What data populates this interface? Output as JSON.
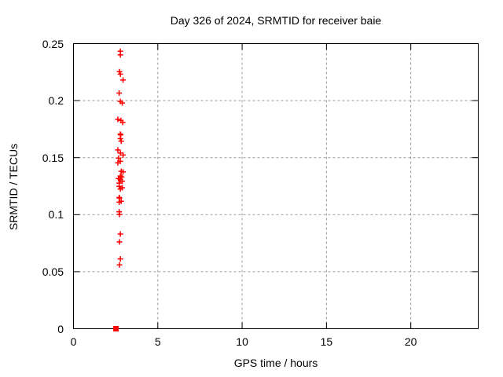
{
  "chart_data": {
    "type": "scatter",
    "title": "Day 326 of 2024, SRMTID for receiver baie",
    "xlabel": "GPS time / hours",
    "ylabel": "SRMTID / TECUs",
    "xlim": [
      0,
      24
    ],
    "ylim": [
      0,
      0.25
    ],
    "x_tick_values": [
      0,
      5,
      10,
      15,
      20
    ],
    "x_tick_labels": [
      "0",
      "5",
      "10",
      "15",
      "20"
    ],
    "y_tick_values": [
      0,
      0.05,
      0.1,
      0.15,
      0.2,
      0.25
    ],
    "y_tick_labels": [
      "0",
      "0.05",
      "0.1",
      "0.15",
      "0.2",
      "0.25"
    ],
    "grid": true,
    "legend": "none",
    "marker": "plus",
    "marker_color": "#ff0000",
    "grid_color": "#9a9a9a",
    "frame_color": "#000000",
    "series": [
      {
        "name": "SRMTID",
        "points": [
          [
            2.78,
            0.2433
          ],
          [
            2.78,
            0.2401
          ],
          [
            2.73,
            0.2254
          ],
          [
            2.78,
            0.2232
          ],
          [
            2.94,
            0.2181
          ],
          [
            2.71,
            0.2066
          ],
          [
            2.78,
            0.1993
          ],
          [
            2.89,
            0.1979
          ],
          [
            2.63,
            0.1835
          ],
          [
            2.81,
            0.1826
          ],
          [
            2.92,
            0.1809
          ],
          [
            2.78,
            0.1706
          ],
          [
            2.8,
            0.1699
          ],
          [
            2.78,
            0.1667
          ],
          [
            2.83,
            0.1644
          ],
          [
            2.63,
            0.1568
          ],
          [
            2.78,
            0.1541
          ],
          [
            2.94,
            0.1523
          ],
          [
            2.67,
            0.1495
          ],
          [
            2.78,
            0.1468
          ],
          [
            2.63,
            0.1454
          ],
          [
            2.83,
            0.138
          ],
          [
            2.94,
            0.1375
          ],
          [
            2.78,
            0.1339
          ],
          [
            2.86,
            0.133
          ],
          [
            2.67,
            0.1316
          ],
          [
            2.78,
            0.1307
          ],
          [
            2.89,
            0.1293
          ],
          [
            2.71,
            0.1277
          ],
          [
            2.71,
            0.1248
          ],
          [
            2.89,
            0.1236
          ],
          [
            2.78,
            0.1224
          ],
          [
            2.71,
            0.1151
          ],
          [
            2.73,
            0.1146
          ],
          [
            2.83,
            0.1117
          ],
          [
            2.71,
            0.111
          ],
          [
            2.71,
            0.1025
          ],
          [
            2.73,
            0.1002
          ],
          [
            2.78,
            0.083
          ],
          [
            2.73,
            0.0761
          ],
          [
            2.78,
            0.0612
          ],
          [
            2.73,
            0.056
          ]
        ]
      }
    ],
    "zero_marker": {
      "x": 2.52,
      "y": 0,
      "marker": "filled-square"
    }
  }
}
